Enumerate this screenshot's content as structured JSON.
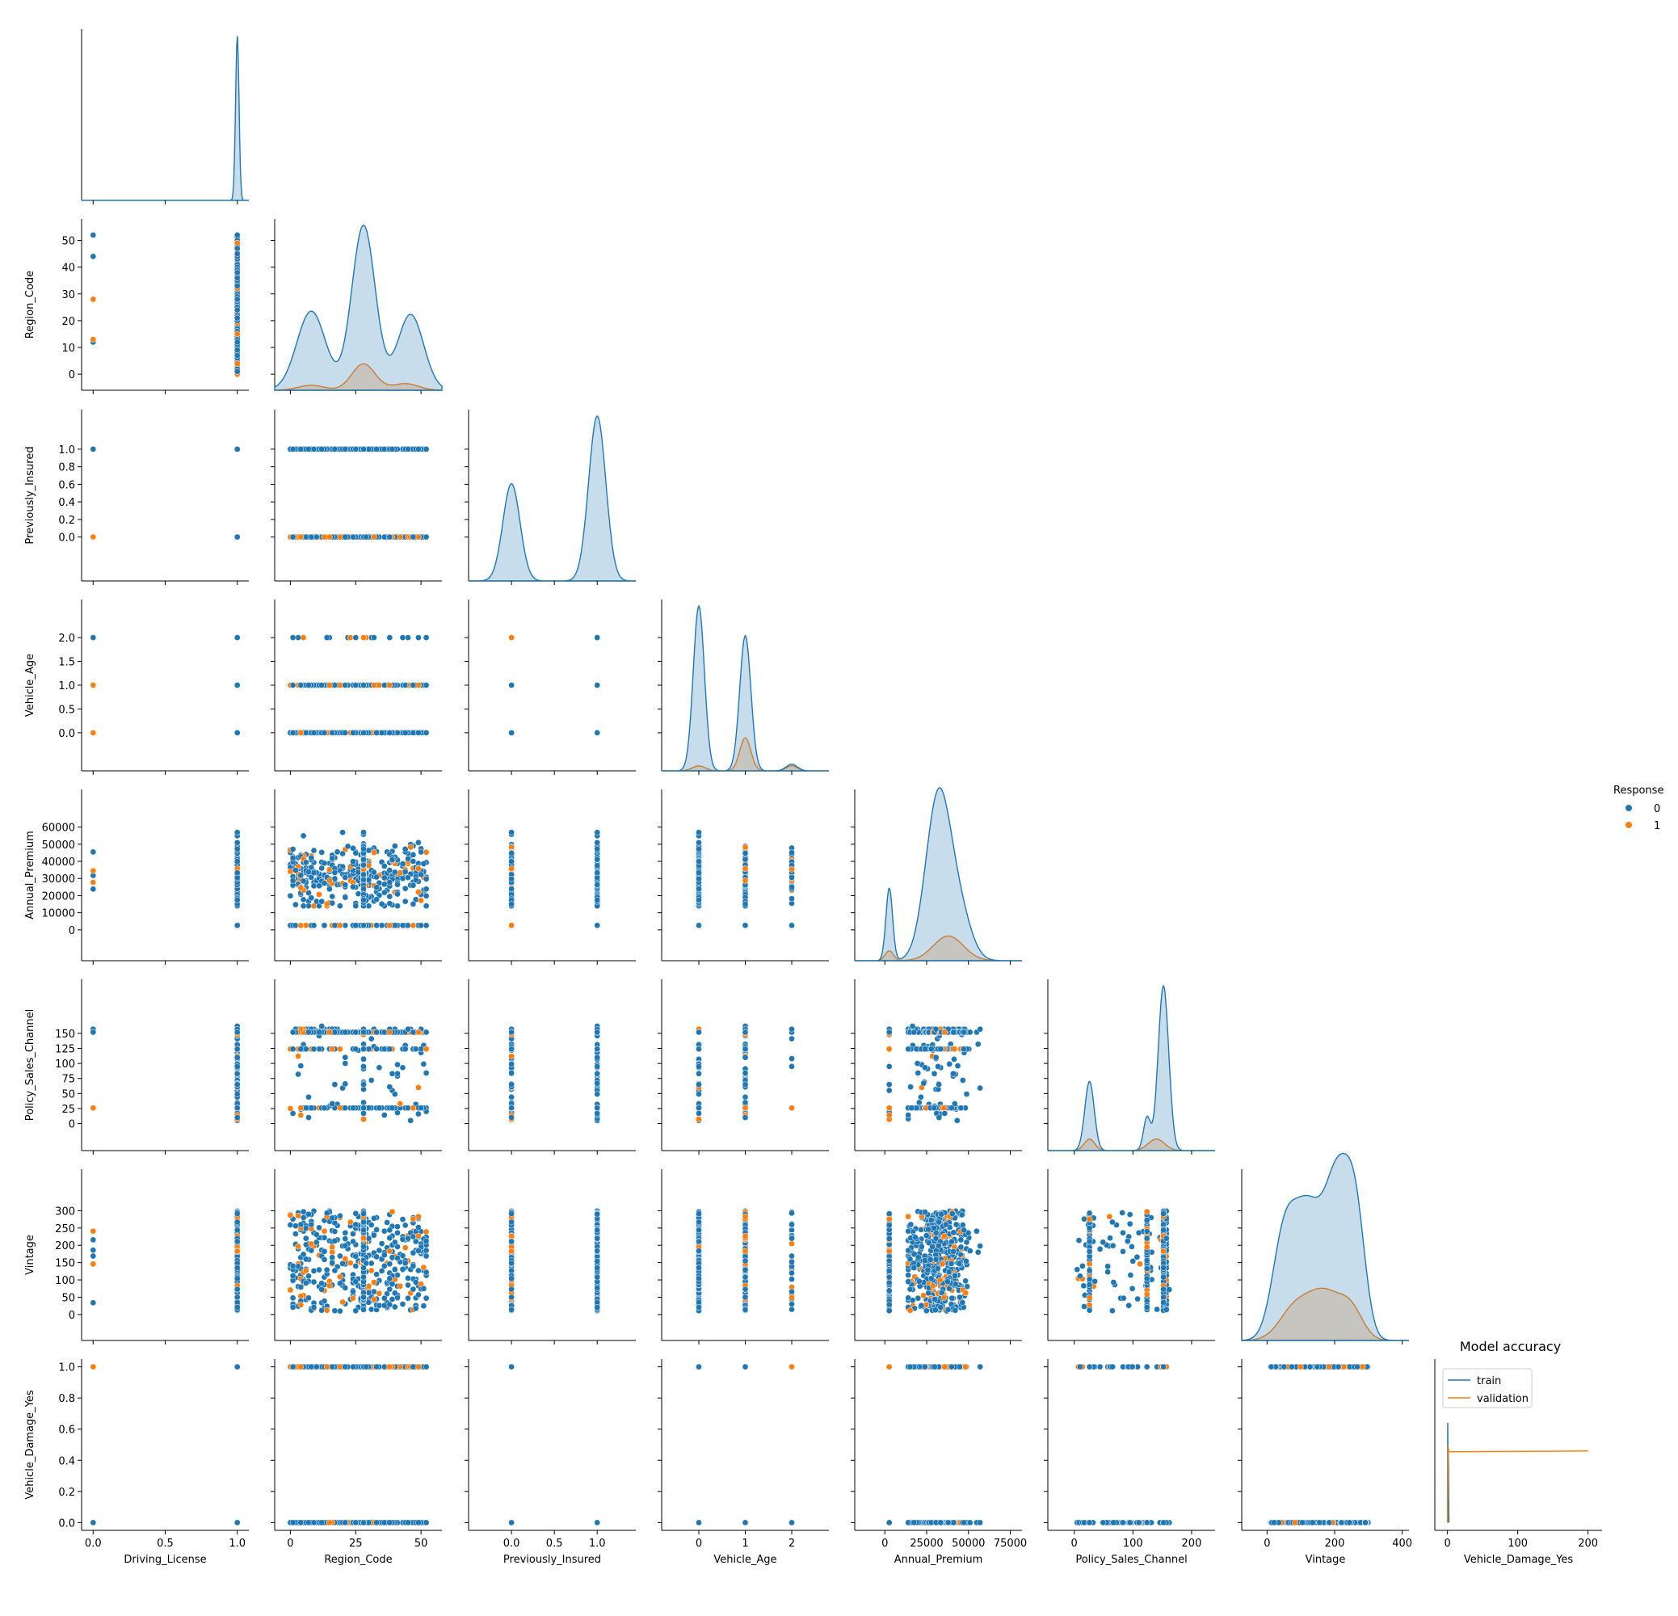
{
  "figure": {
    "legend_title": "Response",
    "inset_title": "Model accuracy"
  },
  "colors": {
    "class0": "#1f77b4",
    "class1": "#ff7f0e"
  },
  "chart_data": [
    {
      "type": "scatter",
      "kind": "pairplot",
      "hue": "Response",
      "hue_levels": [
        "0",
        "1"
      ],
      "layout": "lower-triangle; diagonal shows KDE per hue level",
      "variables": [
        "Driving_License",
        "Region_Code",
        "Previously_Insured",
        "Vehicle_Age",
        "Annual_Premium",
        "Policy_Sales_Channel",
        "Vintage",
        "Vehicle_Damage_Yes"
      ],
      "axes": {
        "Driving_License": {
          "range": [
            -0.08,
            1.08
          ],
          "ticks": [
            0.0,
            0.5,
            1.0
          ],
          "tick_labels": [
            "0.0",
            "0.5",
            "1.0"
          ]
        },
        "Region_Code": {
          "range": [
            -6,
            58
          ],
          "ticks": [
            0,
            10,
            20,
            30,
            40,
            50
          ],
          "tick_labels": [
            "0",
            "25",
            "50"
          ],
          "row_tick_labels": [
            "0",
            "10",
            "20",
            "30",
            "40",
            "50"
          ],
          "col_ticks": [
            0,
            25,
            50
          ]
        },
        "Previously_Insured": {
          "range": [
            -0.5,
            1.45
          ],
          "ticks": [
            0.0,
            0.2,
            0.4,
            0.6,
            0.8,
            1.0
          ],
          "row_tick_labels": [
            "0.0",
            "0.2",
            "0.4",
            "0.6",
            "0.8",
            "1.0"
          ],
          "col_ticks": [
            0.0,
            0.5,
            1.0
          ],
          "tick_labels": [
            "0.0",
            "0.5",
            "1.0"
          ]
        },
        "Vehicle_Age": {
          "range": [
            -0.8,
            2.8
          ],
          "ticks": [
            0.0,
            0.5,
            1.0,
            1.5,
            2.0
          ],
          "row_tick_labels": [
            "0.0",
            "0.5",
            "1.0",
            "1.5",
            "2.0"
          ],
          "col_ticks": [
            0,
            1,
            2
          ],
          "tick_labels": [
            "0",
            "1",
            "2"
          ]
        },
        "Annual_Premium": {
          "range": [
            -18000,
            82000
          ],
          "ticks": [
            0,
            10000,
            20000,
            30000,
            40000,
            50000,
            60000
          ],
          "row_tick_labels": [
            "0",
            "10000",
            "20000",
            "30000",
            "40000",
            "50000",
            "60000"
          ],
          "col_ticks": [
            0,
            25000,
            50000,
            75000
          ],
          "tick_labels": [
            "0",
            "25000",
            "50000",
            "75000"
          ]
        },
        "Policy_Sales_Channel": {
          "range": [
            -45,
            240
          ],
          "ticks": [
            0,
            25,
            50,
            75,
            100,
            125,
            150
          ],
          "row_tick_labels": [
            "0",
            "25",
            "50",
            "75",
            "100",
            "125",
            "150"
          ],
          "col_ticks": [
            0,
            100,
            200
          ],
          "tick_labels": [
            "0",
            "100",
            "200"
          ]
        },
        "Vintage": {
          "range": [
            -75,
            420
          ],
          "ticks": [
            0,
            50,
            100,
            150,
            200,
            250,
            300
          ],
          "row_tick_labels": [
            "0",
            "50",
            "100",
            "150",
            "200",
            "250",
            "300"
          ],
          "col_ticks": [
            0,
            200,
            400
          ],
          "tick_labels": [
            "0",
            "200",
            "400"
          ]
        },
        "Vehicle_Damage_Yes": {
          "range": [
            -0.05,
            1.05
          ],
          "ticks": [
            0.0,
            0.2,
            0.4,
            0.6,
            0.8,
            1.0
          ],
          "row_tick_labels": [
            "0.0",
            "0.2",
            "0.4",
            "0.6",
            "0.8",
            "1.0"
          ],
          "col_ticks": [
            0,
            100,
            200
          ],
          "tick_labels": [
            "0",
            "100",
            "200"
          ]
        }
      },
      "diagonal_kde": [
        {
          "variable": "Driving_License",
          "series": [
            {
              "name": "0",
              "peaks": [
                [
                  1.0,
                  1.0,
                  0.012
                ]
              ],
              "max": 1.0
            },
            {
              "name": "1",
              "peaks": [],
              "max": 0
            }
          ]
        },
        {
          "variable": "Region_Code",
          "series": [
            {
              "name": "0",
              "peaks": [
                [
                  8,
                  0.48,
                  5.5
                ],
                [
                  28,
                  1.0,
                  4.5
                ],
                [
                  46,
                  0.46,
                  5
                ]
              ],
              "max": 1.0
            },
            {
              "name": "1",
              "peaks": [
                [
                  8,
                  0.03,
                  5
                ],
                [
                  28,
                  0.16,
                  4.5
                ],
                [
                  44,
                  0.04,
                  5
                ]
              ],
              "max": 1.0
            }
          ]
        },
        {
          "variable": "Previously_Insured",
          "series": [
            {
              "name": "0",
              "peaks": [
                [
                  0,
                  0.59,
                  0.1
                ],
                [
                  1,
                  1.0,
                  0.1
                ]
              ],
              "max": 1.0
            },
            {
              "name": "1",
              "peaks": [
                [
                  0,
                  0.0,
                  0.1
                ]
              ],
              "max": 1.0
            }
          ]
        },
        {
          "variable": "Vehicle_Age",
          "series": [
            {
              "name": "0",
              "peaks": [
                [
                  0,
                  1.0,
                  0.12
                ],
                [
                  1,
                  0.82,
                  0.12
                ],
                [
                  2,
                  0.04,
                  0.12
                ]
              ],
              "max": 1.0
            },
            {
              "name": "1",
              "peaks": [
                [
                  0,
                  0.03,
                  0.14
                ],
                [
                  1,
                  0.2,
                  0.12
                ],
                [
                  2,
                  0.03,
                  0.12
                ]
              ],
              "max": 1.0
            }
          ]
        },
        {
          "variable": "Annual_Premium",
          "series": [
            {
              "name": "0",
              "peaks": [
                [
                  2630,
                  0.44,
                  2000
                ],
                [
                  32000,
                  1.0,
                  7500
                ],
                [
                  45000,
                  0.25,
                  7000
                ]
              ],
              "max": 1.0
            },
            {
              "name": "1",
              "peaks": [
                [
                  2630,
                  0.06,
                  2500
                ],
                [
                  38000,
                  0.15,
                  9000
                ]
              ],
              "max": 1.0
            }
          ]
        },
        {
          "variable": "Policy_Sales_Channel",
          "series": [
            {
              "name": "0",
              "peaks": [
                [
                  26,
                  0.42,
                  8
                ],
                [
                  152,
                  1.0,
                  9
                ],
                [
                  124,
                  0.2,
                  6
                ]
              ],
              "max": 1.0
            },
            {
              "name": "1",
              "peaks": [
                [
                  26,
                  0.07,
                  9
                ],
                [
                  140,
                  0.07,
                  14
                ]
              ],
              "max": 1.0
            }
          ]
        },
        {
          "variable": "Vintage",
          "series": [
            {
              "name": "0",
              "peaks": [
                [
                  50,
                  0.6,
                  35
                ],
                [
                  120,
                  0.72,
                  40
                ],
                [
                  210,
                  0.98,
                  40
                ],
                [
                  265,
                  0.55,
                  28
                ]
              ],
              "max": 1.0
            },
            {
              "name": "1",
              "peaks": [
                [
                  80,
                  0.18,
                  45
                ],
                [
                  170,
                  0.28,
                  50
                ],
                [
                  250,
                  0.16,
                  35
                ]
              ],
              "max": 1.0
            }
          ]
        }
      ]
    },
    {
      "type": "line",
      "title": "Model accuracy",
      "xlabel": "Vehicle_Damage_Yes",
      "xlim": [
        -18,
        220
      ],
      "ylim": [
        -0.05,
        1.05
      ],
      "x_ticks": [
        0,
        100,
        200
      ],
      "legend": "upper-left",
      "series": [
        {
          "name": "train",
          "x": [
            0,
            0.4,
            0.8,
            1.2,
            2
          ],
          "y": [
            0.0,
            0.64,
            0.0,
            0.48,
            0.0
          ]
        },
        {
          "name": "validation",
          "x": [
            0,
            1,
            2,
            50,
            100,
            150,
            200
          ],
          "y": [
            0.0,
            0.49,
            0.455,
            0.456,
            0.457,
            0.458,
            0.46
          ]
        }
      ]
    }
  ]
}
